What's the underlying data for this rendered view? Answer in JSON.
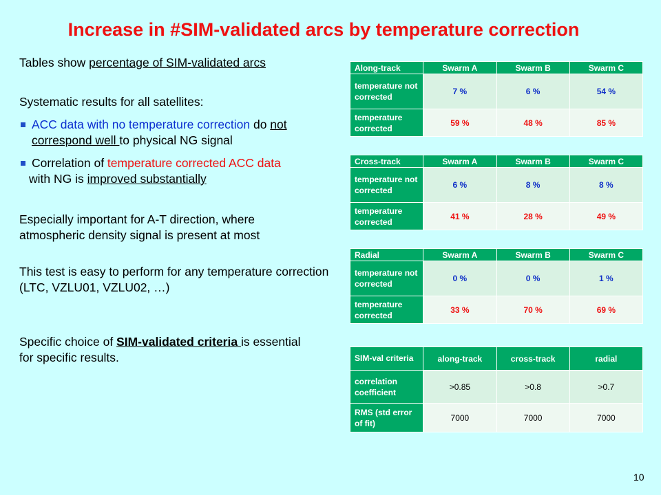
{
  "title": "Increase in #SIM-validated arcs by temperature correction",
  "left": {
    "p1_pre": "Tables show ",
    "p1_u": "percentage of SIM-validated arcs",
    "p2": "Systematic results for all satellites:",
    "b1_blue": "ACC data with no temperature correction",
    "b1_mid": " do ",
    "b1_u1": "not",
    "b1_u2": "correspond well ",
    "b1_end": "to physical NG signal",
    "b2_pre": "Correlation of ",
    "b2_red": "temperature corrected ACC data",
    "b2_mid": " with NG is ",
    "b2_u": "improved substantially",
    "p3": "Especially important for A-T direction, where atmospheric density signal is present at most",
    "p4": "This test is easy to perform for any temperature correction (LTC, VZLU01, VZLU02, …)",
    "p5_pre": "Specific choice of ",
    "p5_u": "SIM-validated criteria ",
    "p5_end": "is essential for specific results."
  },
  "tables": [
    {
      "header": [
        "Along-track",
        "Swarm A",
        "Swarm B",
        "Swarm C"
      ],
      "rows": [
        {
          "label": "temperature not corrected",
          "values": [
            "7 %",
            "6 %",
            "54 %"
          ]
        },
        {
          "label": "temperature corrected",
          "values": [
            "59 %",
            "48 %",
            "85 %"
          ]
        }
      ]
    },
    {
      "header": [
        "Cross-track",
        "Swarm A",
        "Swarm B",
        "Swarm C"
      ],
      "rows": [
        {
          "label": "temperature not corrected",
          "values": [
            "6 %",
            "8 %",
            "8 %"
          ]
        },
        {
          "label": "temperature corrected",
          "values": [
            "41 %",
            "28 %",
            "49 %"
          ]
        }
      ]
    },
    {
      "header": [
        "Radial",
        "Swarm A",
        "Swarm B",
        "Swarm C"
      ],
      "rows": [
        {
          "label": "temperature not corrected",
          "values": [
            "0 %",
            "0 %",
            "1 %"
          ]
        },
        {
          "label": "temperature corrected",
          "values": [
            "33 %",
            "70 %",
            "69 %"
          ]
        }
      ]
    },
    {
      "header": [
        "SIM-val criteria",
        "along-track",
        "cross-track",
        "radial"
      ],
      "rows": [
        {
          "label": "correlation coefficient",
          "values": [
            ">0.85",
            ">0.8",
            ">0.7"
          ]
        },
        {
          "label": "RMS (std error of fit)",
          "values": [
            "7000",
            "7000",
            "7000"
          ]
        }
      ]
    }
  ],
  "page_number": "10"
}
